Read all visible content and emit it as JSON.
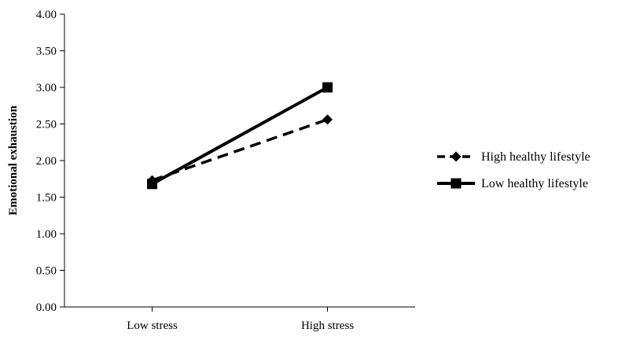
{
  "chart_data": {
    "type": "line",
    "title": "",
    "xlabel": "",
    "ylabel": "Emotional exhaustion",
    "categories": [
      "Low stress",
      "High stress"
    ],
    "ylim": [
      0,
      4
    ],
    "yticks": [
      "0.00",
      "0.50",
      "1.00",
      "1.50",
      "2.00",
      "2.50",
      "3.00",
      "3.50",
      "4.00"
    ],
    "grid": false,
    "legend_position": "right",
    "series": [
      {
        "name": "High healthy lifestyle",
        "values": [
          1.73,
          2.56
        ],
        "line_style": "dashed",
        "marker": "diamond",
        "color": "#000000"
      },
      {
        "name": "Low healthy lifestyle",
        "values": [
          1.68,
          3.0
        ],
        "line_style": "solid",
        "marker": "square",
        "color": "#000000"
      }
    ]
  }
}
